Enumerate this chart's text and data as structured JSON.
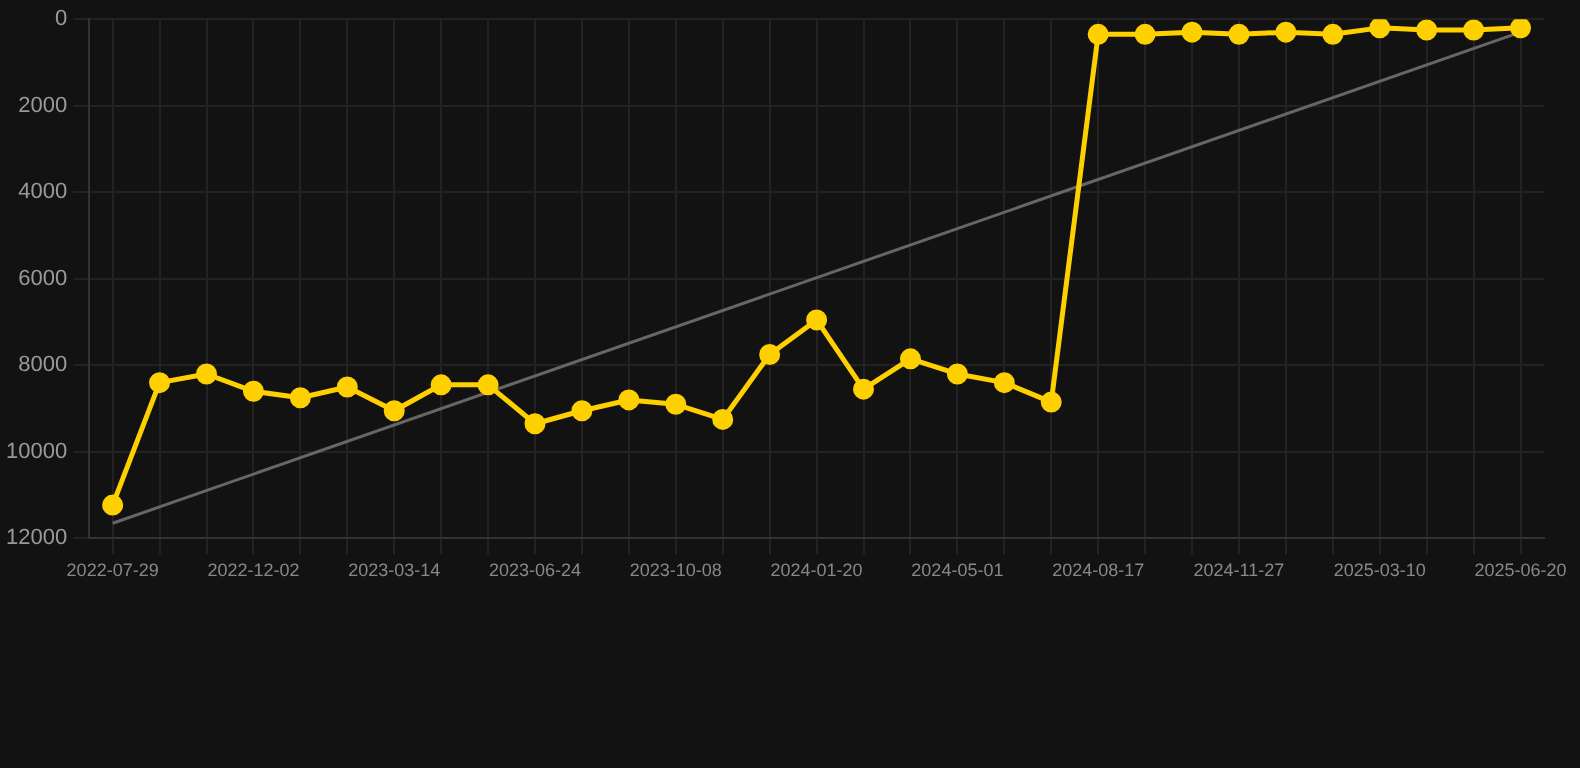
{
  "chart_data": {
    "type": "line",
    "categories": [
      "2022-07-29",
      null,
      null,
      "2022-12-02",
      null,
      null,
      "2023-03-14",
      null,
      null,
      "2023-06-24",
      null,
      null,
      "2023-10-08",
      null,
      null,
      "2024-01-20",
      null,
      null,
      "2024-05-01",
      null,
      null,
      "2024-08-17",
      null,
      null,
      "2024-11-27",
      null,
      null,
      "2025-03-10",
      null,
      null,
      "2025-06-20"
    ],
    "series": [
      {
        "color": "#ffd000",
        "marker": "circle",
        "values": [
          11230,
          8400,
          8200,
          8600,
          8750,
          8500,
          9050,
          8450,
          8450,
          9350,
          9050,
          8800,
          8900,
          9250,
          7750,
          6950,
          8550,
          7850,
          8200,
          8400,
          8850,
          350,
          350,
          300,
          350,
          300,
          350,
          200,
          250,
          250,
          200
        ]
      },
      {
        "type": "line",
        "color": "#666666",
        "marker": "none",
        "values": [
          11650,
          null,
          null,
          null,
          null,
          null,
          null,
          null,
          null,
          null,
          null,
          null,
          null,
          null,
          null,
          null,
          null,
          null,
          null,
          null,
          null,
          null,
          null,
          null,
          null,
          null,
          null,
          null,
          null,
          null,
          300
        ]
      }
    ],
    "ylim": [
      12000,
      0
    ],
    "yticks": [
      0,
      2000,
      4000,
      6000,
      8000,
      10000,
      12000
    ],
    "grid": true,
    "legend": false
  }
}
